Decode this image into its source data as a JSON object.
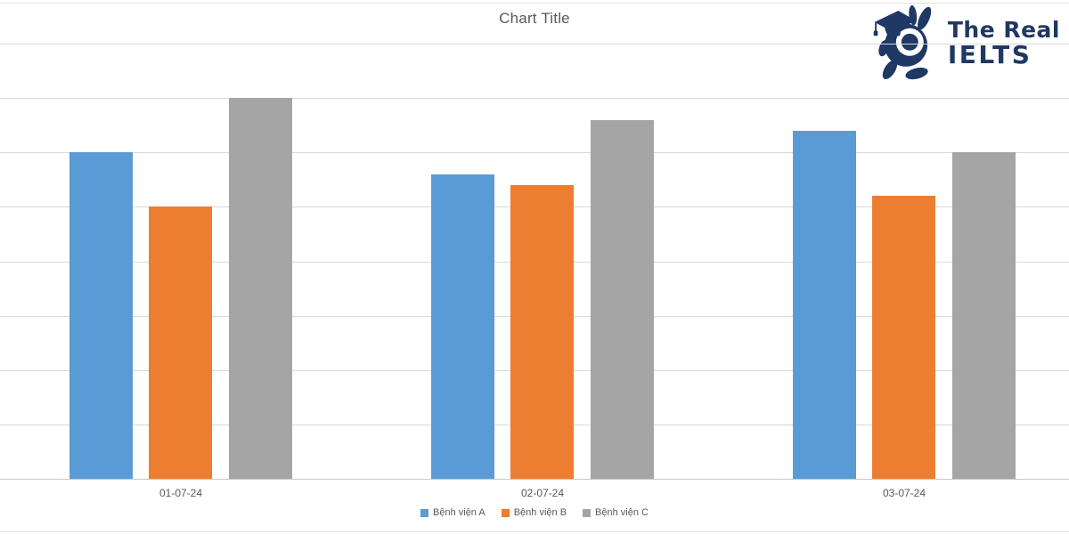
{
  "header": {
    "title": "Chart Title"
  },
  "logo": {
    "line1": "The Real",
    "line2": "IELTS",
    "color": "#1f3864",
    "mascot_icon": "rabbit-graduate-magnifier-icon"
  },
  "chart_data": {
    "type": "bar",
    "title": "Chart Title",
    "categories": [
      "01-07-24",
      "02-07-24",
      "03-07-24"
    ],
    "series": [
      {
        "name": "Bệnh viện A",
        "color": "#5b9bd5",
        "values": [
          6.0,
          5.6,
          6.4
        ]
      },
      {
        "name": "Bệnh viện B",
        "color": "#ed7d31",
        "values": [
          5.0,
          5.4,
          5.2
        ]
      },
      {
        "name": "Bệnh viện C",
        "color": "#a5a5a5",
        "values": [
          7.0,
          6.6,
          6.0
        ]
      }
    ],
    "xlabel": "",
    "ylabel": "",
    "ylim": [
      0,
      8
    ],
    "y_major_unit": 1,
    "y_axis_labels_visible": false,
    "grid": "horizontal",
    "gridline_color": "#d9d9d9",
    "legend_position": "bottom",
    "text_color": "#595959"
  }
}
